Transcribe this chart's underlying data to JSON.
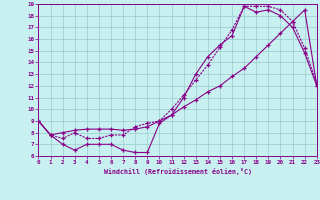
{
  "xlabel": "Windchill (Refroidissement éolien,°C)",
  "xlim": [
    0,
    23
  ],
  "ylim": [
    6,
    19
  ],
  "xtick_labels": [
    "0",
    "1",
    "2",
    "3",
    "4",
    "5",
    "6",
    "7",
    "8",
    "9",
    "10",
    "11",
    "12",
    "13",
    "14",
    "15",
    "16",
    "17",
    "18",
    "19",
    "20",
    "21",
    "22",
    "23"
  ],
  "ytick_labels": [
    "6",
    "7",
    "8",
    "9",
    "10",
    "11",
    "12",
    "13",
    "14",
    "15",
    "16",
    "17",
    "18",
    "19"
  ],
  "color": "#880088",
  "bg_color": "#c8f0f0",
  "curve1_x": [
    0,
    1,
    2,
    3,
    4,
    5,
    6,
    7,
    8,
    9,
    10,
    11,
    12,
    13,
    14,
    15,
    16,
    17,
    18,
    19,
    20,
    21,
    22,
    23
  ],
  "curve1_y": [
    9.0,
    7.8,
    7.0,
    6.5,
    7.0,
    7.0,
    7.0,
    6.5,
    6.3,
    6.3,
    8.8,
    9.5,
    11.0,
    13.0,
    14.5,
    15.5,
    16.3,
    18.8,
    18.3,
    18.5,
    18.0,
    17.0,
    14.8,
    12.0
  ],
  "curve2_x": [
    0,
    1,
    2,
    3,
    4,
    5,
    6,
    7,
    8,
    9,
    10,
    11,
    12,
    13,
    14,
    15,
    16,
    17,
    18,
    19,
    20,
    21,
    22,
    23
  ],
  "curve2_y": [
    9.0,
    7.8,
    7.5,
    8.0,
    7.5,
    7.5,
    7.8,
    7.8,
    8.5,
    8.8,
    9.0,
    10.0,
    11.2,
    12.5,
    13.8,
    15.3,
    16.8,
    18.8,
    18.8,
    18.8,
    18.5,
    17.5,
    15.2,
    12.2
  ],
  "curve3_x": [
    0,
    1,
    2,
    3,
    4,
    5,
    6,
    7,
    8,
    9,
    10,
    11,
    12,
    13,
    14,
    15,
    16,
    17,
    18,
    19,
    20,
    21,
    22,
    23
  ],
  "curve3_y": [
    9.0,
    7.8,
    8.0,
    8.2,
    8.3,
    8.3,
    8.3,
    8.2,
    8.3,
    8.5,
    9.0,
    9.5,
    10.2,
    10.8,
    11.5,
    12.0,
    12.8,
    13.5,
    14.5,
    15.5,
    16.5,
    17.5,
    18.5,
    12.0
  ]
}
